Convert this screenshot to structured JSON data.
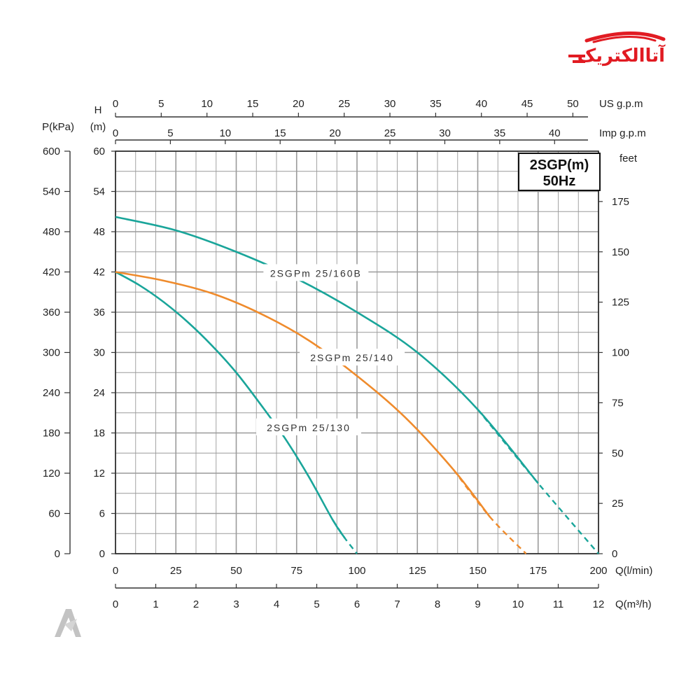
{
  "logo": {
    "text": "آتاالکتریک"
  },
  "chart_data": {
    "type": "line",
    "title": "",
    "model": "2SGP(m)",
    "frequency": "50Hz",
    "x_axes": {
      "flow_lmin": {
        "label": "Q(l/min)",
        "range": [
          0,
          200
        ],
        "ticks": [
          0,
          25,
          50,
          75,
          100,
          125,
          150,
          175,
          200
        ]
      },
      "flow_m3h": {
        "label": "Q(m³/h)",
        "range": [
          0,
          12
        ],
        "ticks": [
          0,
          1,
          2,
          3,
          4,
          5,
          6,
          7,
          8,
          9,
          10,
          11,
          12
        ]
      },
      "us_gpm": {
        "label": "US  g.p.m",
        "range": [
          0,
          52.8
        ],
        "ticks": [
          0,
          5,
          10,
          15,
          20,
          25,
          30,
          35,
          40,
          45,
          50
        ]
      },
      "imp_gpm": {
        "label": "Imp  g.p.m",
        "range": [
          0,
          44
        ],
        "ticks": [
          0,
          5,
          10,
          15,
          20,
          25,
          30,
          35,
          40
        ]
      }
    },
    "y_axes": {
      "head_m": {
        "label_top": "H",
        "label_unit": "(m)",
        "range": [
          0,
          60
        ],
        "ticks": [
          0,
          6,
          12,
          18,
          24,
          30,
          36,
          42,
          48,
          54,
          60
        ]
      },
      "pressure_kpa": {
        "label": "P(kPa)",
        "range": [
          0,
          600
        ],
        "ticks": [
          0,
          60,
          120,
          180,
          240,
          300,
          360,
          420,
          480,
          540,
          600
        ]
      },
      "head_ft": {
        "label": "feet",
        "range": [
          0,
          200
        ],
        "ticks": [
          0,
          25,
          50,
          75,
          100,
          125,
          150,
          175
        ]
      }
    },
    "grid": true,
    "legend": "inline labels",
    "series": [
      {
        "name": "2SGPm 25/130",
        "label": "2SGPm 25/130",
        "color": "#1aa59a",
        "x": [
          0,
          10,
          20,
          30,
          40,
          50,
          60,
          70,
          80,
          90,
          95
        ],
        "y": [
          42,
          40,
          37.5,
          34.5,
          31,
          27,
          22.3,
          17.3,
          11.5,
          5,
          2.3
        ],
        "dashed_x": [
          90,
          95,
          100
        ],
        "dashed_y": [
          5,
          2.3,
          0
        ]
      },
      {
        "name": "2SGPm 25/140",
        "label": "2SGPm 25/140",
        "color": "#ef8b2c",
        "x": [
          0,
          20,
          40,
          60,
          80,
          100,
          120,
          140,
          155
        ],
        "y": [
          42,
          40.7,
          38.8,
          35.8,
          31.8,
          26.5,
          20.3,
          12.5,
          5.5
        ],
        "dashed_x": [
          140,
          155,
          170
        ],
        "dashed_y": [
          12.5,
          5.5,
          0
        ]
      },
      {
        "name": "2SGPm 25/160B",
        "label": "2SGPm 25/160B",
        "color": "#1aa59a",
        "x": [
          0,
          25,
          50,
          75,
          100,
          125,
          150,
          175
        ],
        "y": [
          50.2,
          48.2,
          45,
          41,
          36,
          30,
          21.5,
          10.5
        ],
        "dashed_x": [
          150,
          175,
          200
        ],
        "dashed_y": [
          21.5,
          10.5,
          0
        ]
      }
    ]
  }
}
